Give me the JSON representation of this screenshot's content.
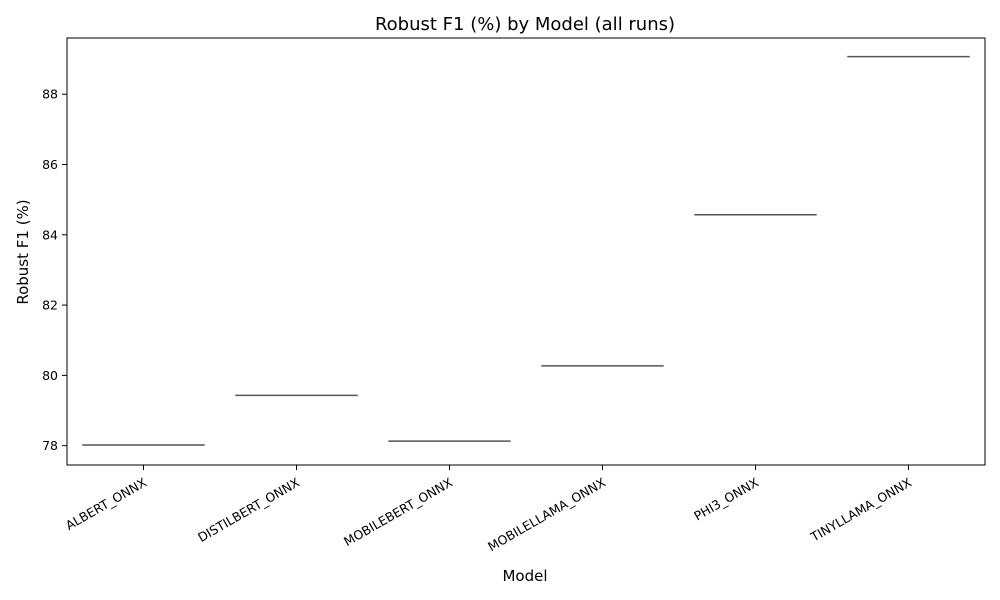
{
  "chart_data": {
    "type": "box",
    "title": "Robust F1 (%) by Model (all runs)",
    "xlabel": "Model",
    "ylabel": "Robust F1 (%)",
    "categories": [
      "ALBERT_ONNX",
      "DISTILBERT_ONNX",
      "MOBILEBERT_ONNX",
      "MOBILELLAMA_ONNX",
      "PHI3_ONNX",
      "TINYLLAMA_ONNX"
    ],
    "values": [
      78.02,
      79.43,
      78.13,
      80.27,
      84.57,
      89.07
    ],
    "ylim": [
      77.45,
      89.6
    ],
    "yticks": [
      78,
      80,
      82,
      84,
      86,
      88
    ],
    "grid": false,
    "legend": "none",
    "colors": {
      "box_line": "#555555",
      "axis": "#000000"
    }
  }
}
